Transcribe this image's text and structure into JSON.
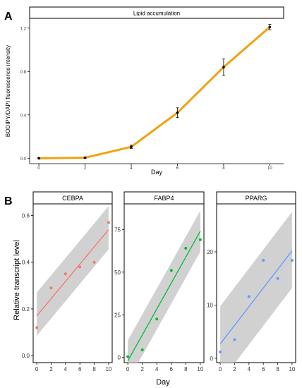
{
  "panel_a": {
    "letter": "A",
    "strip_label": "Lipid accumulation"
  },
  "panel_b": {
    "letter": "B"
  },
  "chart_data": [
    {
      "type": "line",
      "title": "Lipid accumulation",
      "xlabel": "Day",
      "ylabel": "BODIPY/DAPI fluorescence intensity",
      "x": [
        0,
        2,
        4,
        6,
        8,
        10
      ],
      "y": [
        0.0,
        0.005,
        0.105,
        0.42,
        0.84,
        1.21
      ],
      "y_err": [
        0.005,
        0.006,
        0.015,
        0.045,
        0.075,
        0.025
      ],
      "xlim": [
        -0.4,
        10.6
      ],
      "ylim": [
        -0.05,
        1.29
      ],
      "xticks": [
        0,
        2,
        4,
        6,
        8,
        10
      ],
      "yticks": [
        0.0,
        0.4,
        0.8,
        1.2
      ],
      "ytick_labels": [
        "0.0",
        "0.4",
        "0.8",
        "1.2"
      ],
      "line_color": "#f0a30f",
      "grid": false
    },
    {
      "type": "scatter",
      "title": "CEBPA",
      "xlabel": "Day",
      "ylabel": "Relative transcript level",
      "x": [
        0,
        2,
        4,
        6,
        8,
        10
      ],
      "y": [
        0.12,
        0.29,
        0.35,
        0.38,
        0.4,
        0.57
      ],
      "fit": [
        0.17,
        0.54
      ],
      "band": [
        [
          0.085,
          0.27
        ],
        [
          0.455,
          0.64
        ]
      ],
      "xlim": [
        -0.5,
        10.5
      ],
      "ylim": [
        -0.03,
        0.65
      ],
      "xticks": [
        0,
        2,
        4,
        6,
        8,
        10
      ],
      "yticks": [
        0.0,
        0.2,
        0.4,
        0.6
      ],
      "ytick_labels": [
        "0.0",
        "0.2",
        "0.4",
        "0.6"
      ],
      "color": "#f8766d"
    },
    {
      "type": "scatter",
      "title": "FABP4",
      "xlabel": "Day",
      "ylabel": "Relative transcript level",
      "x": [
        0,
        2,
        4,
        6,
        8,
        10
      ],
      "y": [
        0.5,
        4.5,
        22.5,
        51,
        64,
        69
      ],
      "fit": [
        -2.0,
        74.0
      ],
      "band": [
        [
          -14,
          10
        ],
        [
          62,
          86
        ]
      ],
      "xlim": [
        -0.5,
        10.5
      ],
      "ylim": [
        -3,
        90
      ],
      "xticks": [
        0,
        2,
        4,
        6,
        8,
        10
      ],
      "yticks": [
        0,
        25,
        50,
        75
      ],
      "ytick_labels": [
        "0",
        "25",
        "50",
        "75"
      ],
      "color": "#00ba38"
    },
    {
      "type": "scatter",
      "title": "PPARG",
      "xlabel": "Day",
      "ylabel": "Relative transcript level",
      "x": [
        0,
        2,
        4,
        6,
        8,
        10
      ],
      "y": [
        1.2,
        3.5,
        11.6,
        18.4,
        15.0,
        18.4
      ],
      "fit": [
        2.7,
        20.2
      ],
      "band": [
        [
          -4.5,
          9.8
        ],
        [
          13.2,
          27.5
        ]
      ],
      "xlim": [
        -0.5,
        10.5
      ],
      "ylim": [
        -0.8,
        29
      ],
      "xticks": [
        0,
        2,
        4,
        6,
        8,
        10
      ],
      "yticks": [
        0,
        10,
        20
      ],
      "ytick_labels": [
        "0",
        "10",
        "20"
      ],
      "color": "#619cff"
    }
  ]
}
